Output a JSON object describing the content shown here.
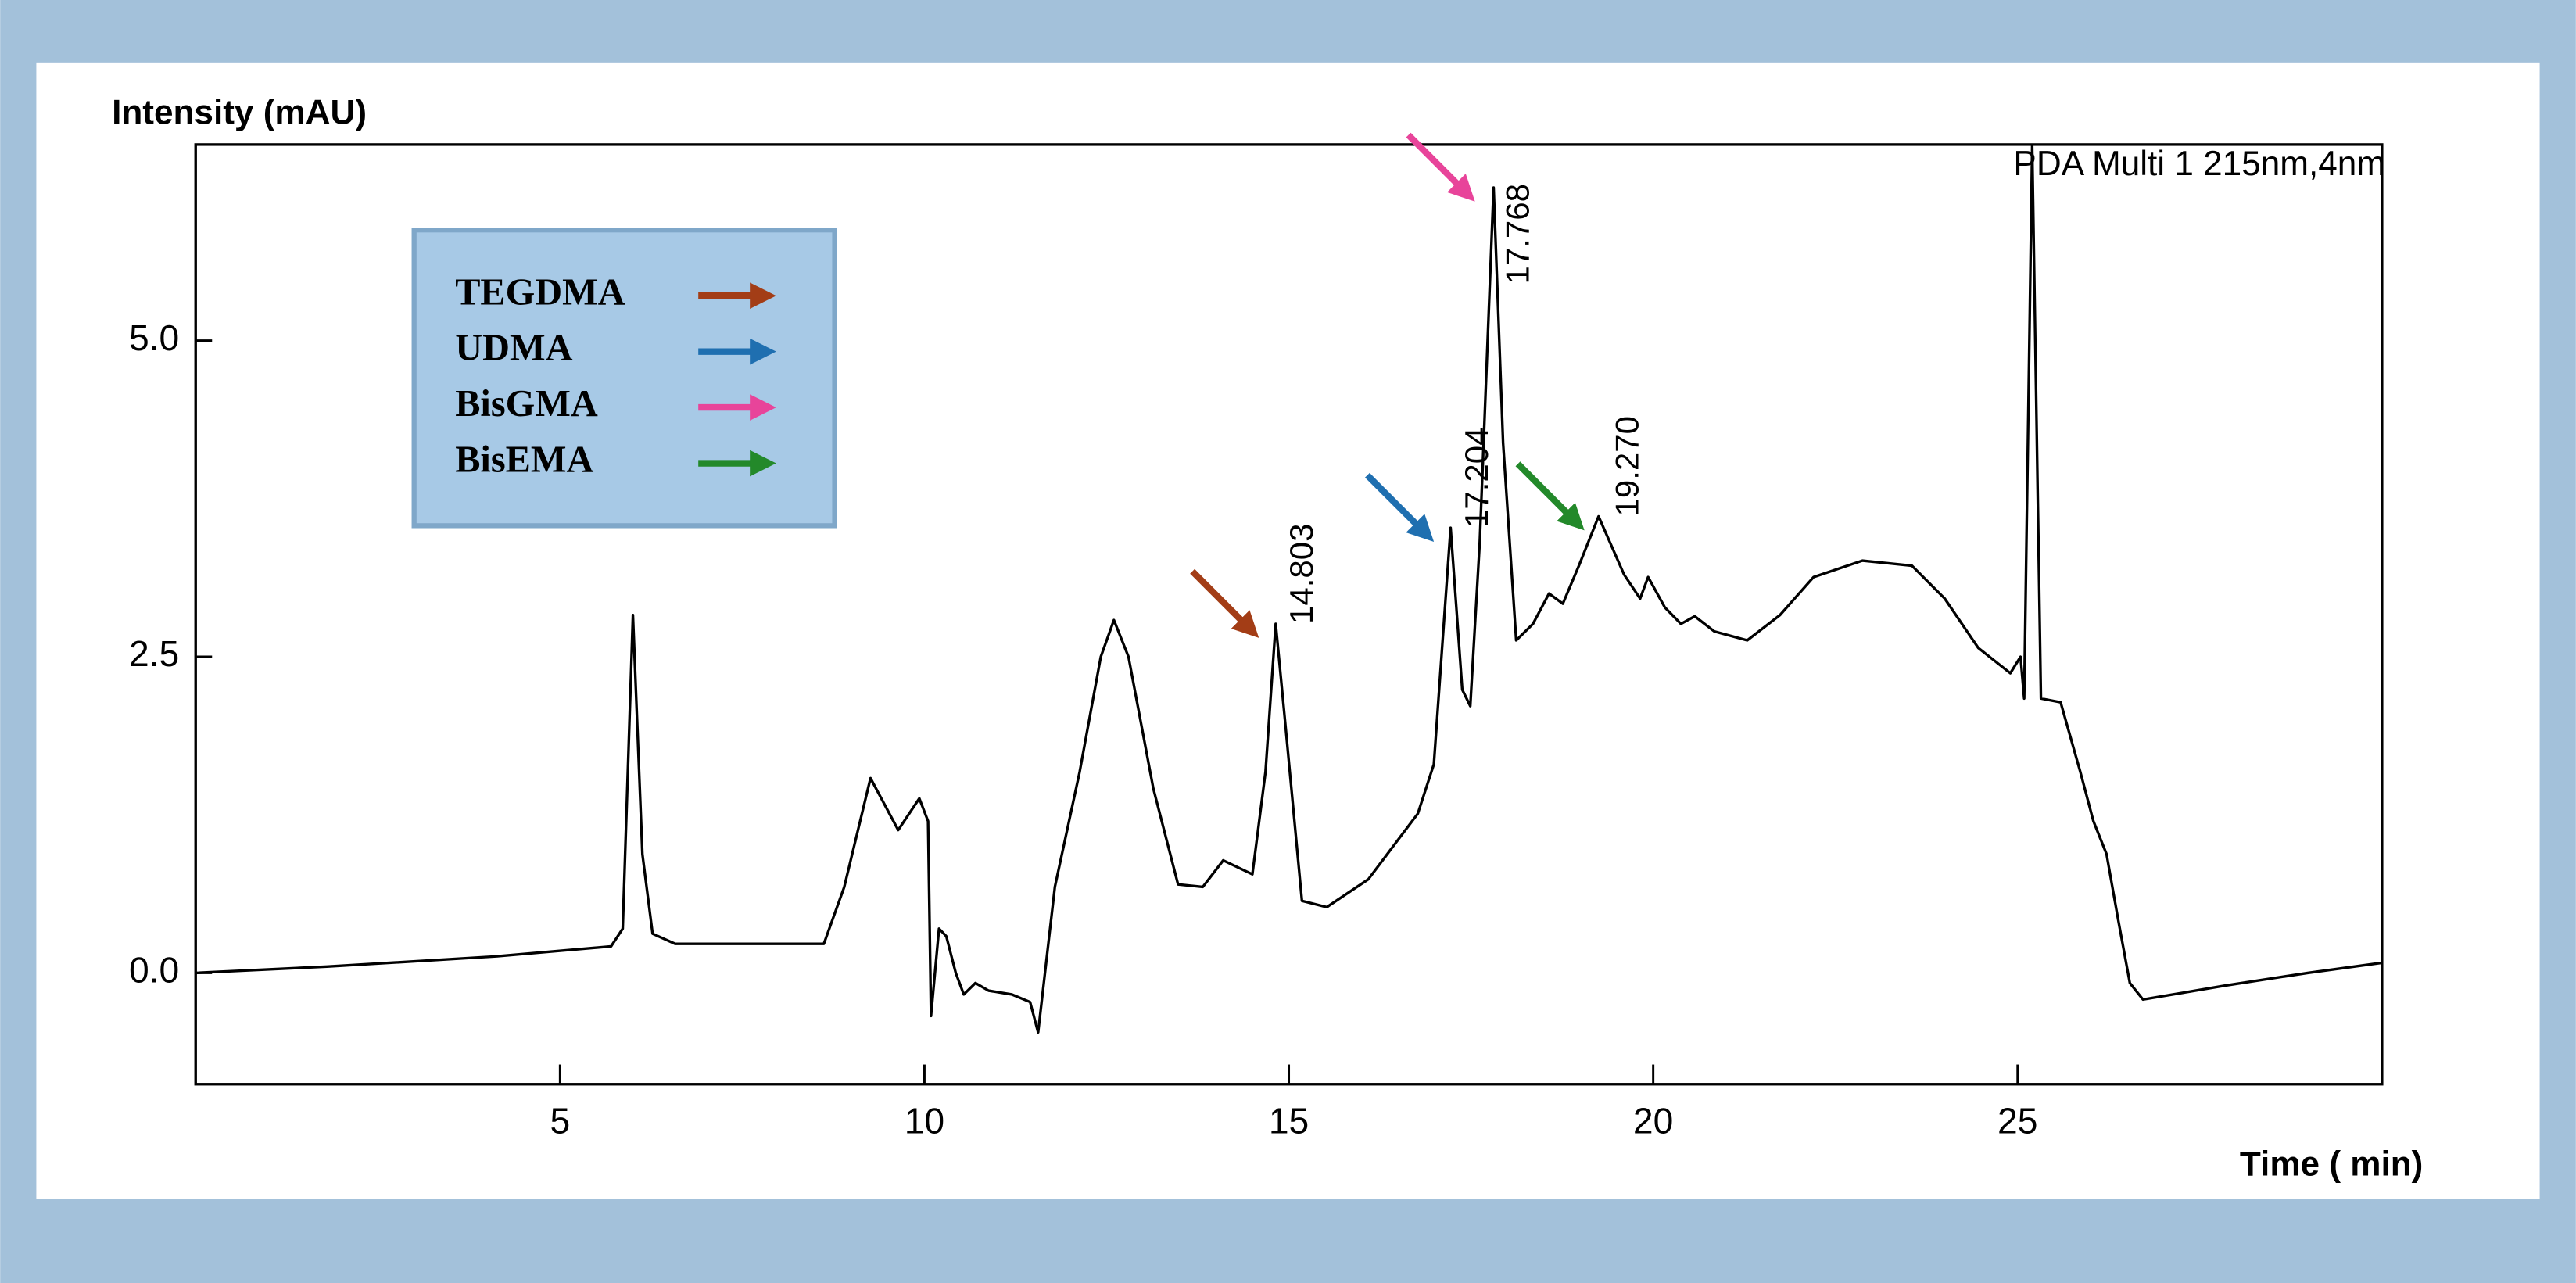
{
  "chart_data": {
    "type": "line",
    "y_label": "Intensity (mAU)",
    "x_label": "Time ( min)",
    "annotation": "PDA Multi 1 215nm,4nm",
    "color": "#000000",
    "xlim": [
      0,
      30
    ],
    "ylim": [
      -0.88,
      6.55
    ],
    "xticks": [
      5,
      10,
      15,
      20,
      25
    ],
    "yticks": [
      {
        "value": 0,
        "label": "0.0"
      },
      2.5,
      {
        "value": 5,
        "label": "5.0"
      }
    ],
    "x": [
      0,
      1.8,
      4.1,
      5.7,
      5.86,
      6.0,
      6.13,
      6.27,
      6.58,
      8.62,
      8.9,
      9.26,
      9.64,
      9.93,
      10.05,
      10.09,
      10.2,
      10.3,
      10.43,
      10.54,
      10.7,
      10.88,
      11.2,
      11.45,
      11.56,
      11.79,
      12.13,
      12.42,
      12.6,
      12.8,
      13.14,
      13.48,
      13.82,
      14.1,
      14.5,
      14.68,
      14.82,
      14.95,
      15.18,
      15.52,
      16.09,
      16.77,
      16.99,
      17.22,
      17.38,
      17.49,
      17.62,
      17.81,
      17.94,
      18.12,
      18.35,
      18.57,
      18.76,
      18.98,
      19.25,
      19.6,
      19.82,
      19.93,
      20.16,
      20.38,
      20.57,
      20.84,
      21.29,
      21.74,
      22.2,
      22.87,
      23.55,
      24.0,
      24.46,
      24.9,
      25.04,
      25.09,
      25.2,
      25.32,
      25.59,
      25.86,
      26.04,
      26.22,
      26.38,
      26.54,
      26.72,
      27.85,
      28.98,
      30.0
    ],
    "values": [
      0,
      0.05,
      0.13,
      0.21,
      0.35,
      2.83,
      0.94,
      0.31,
      0.23,
      0.23,
      0.68,
      1.54,
      1.13,
      1.38,
      1.2,
      -0.34,
      0.35,
      0.29,
      0,
      -0.17,
      -0.08,
      -0.14,
      -0.17,
      -0.23,
      -0.47,
      0.68,
      1.59,
      2.5,
      2.79,
      2.5,
      1.46,
      0.7,
      0.68,
      0.89,
      0.78,
      1.59,
      2.76,
      1.98,
      0.57,
      0.52,
      0.74,
      1.26,
      1.65,
      3.52,
      2.24,
      2.11,
      3.41,
      6.21,
      4.19,
      2.63,
      2.76,
      3.0,
      2.92,
      3.22,
      3.61,
      3.15,
      2.96,
      3.13,
      2.89,
      2.76,
      2.82,
      2.7,
      2.63,
      2.83,
      3.13,
      3.26,
      3.22,
      2.96,
      2.57,
      2.37,
      2.5,
      2.17,
      6.54,
      2.17,
      2.14,
      1.59,
      1.2,
      0.94,
      0.42,
      -0.08,
      -0.21,
      -0.1,
      0,
      0.08
    ],
    "peak_labels": [
      "14.803",
      "17.204",
      "17.768",
      "19.270"
    ],
    "peak_x": [
      14.803,
      17.204,
      17.768,
      19.27
    ],
    "peak_y": [
      2.76,
      3.52,
      6.21,
      3.61
    ],
    "legend": [
      {
        "name": "TEGDMA",
        "color": "#a33d16"
      },
      {
        "name": "UDMA",
        "color": "#1f6fb0"
      },
      {
        "name": "BisGMA",
        "color": "#e8449a"
      },
      {
        "name": "BisEMA",
        "color": "#23892a"
      }
    ]
  }
}
